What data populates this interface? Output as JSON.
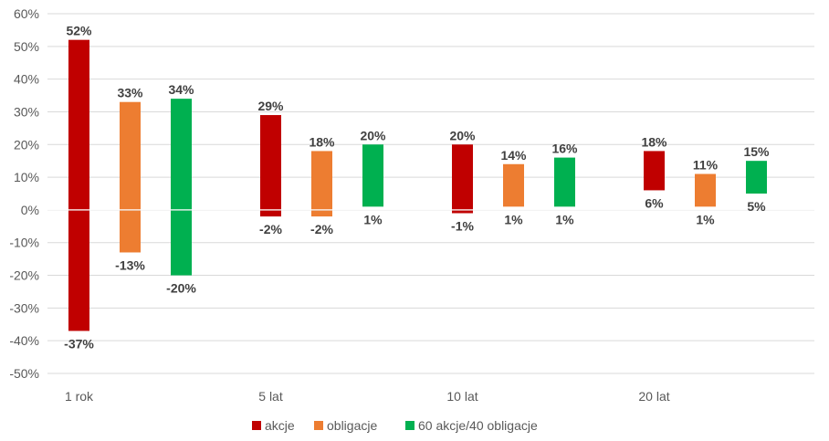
{
  "chart_data": {
    "type": "bar",
    "subtype": "floating-range",
    "categories": [
      "1 rok",
      "5 lat",
      "10 lat",
      "20 lat"
    ],
    "ylim": [
      -50,
      60
    ],
    "yticks": [
      -50,
      -40,
      -30,
      -20,
      -10,
      0,
      10,
      20,
      30,
      40,
      50,
      60
    ],
    "ytick_labels": [
      "-50%",
      "-40%",
      "-30%",
      "-20%",
      "-10%",
      "0%",
      "10%",
      "20%",
      "30%",
      "40%",
      "50%",
      "60%"
    ],
    "grid": true,
    "legend_position": "bottom",
    "series": [
      {
        "name": "akcje",
        "color": "#c00000",
        "high": [
          52,
          29,
          20,
          18
        ],
        "low": [
          -37,
          -2,
          -1,
          6
        ],
        "high_labels": [
          "52%",
          "29%",
          "20%",
          "18%"
        ],
        "low_labels": [
          "-37%",
          "-2%",
          "-1%",
          "6%"
        ]
      },
      {
        "name": "obligacje",
        "color": "#ed7d31",
        "high": [
          33,
          18,
          14,
          11
        ],
        "low": [
          -13,
          -2,
          1,
          1
        ],
        "high_labels": [
          "33%",
          "18%",
          "14%",
          "11%"
        ],
        "low_labels": [
          "-13%",
          "-2%",
          "1%",
          "1%"
        ]
      },
      {
        "name": "60 akcje/40 obligacje",
        "color": "#00b050",
        "high": [
          34,
          20,
          16,
          15
        ],
        "low": [
          -20,
          1,
          1,
          5
        ],
        "high_labels": [
          "34%",
          "20%",
          "16%",
          "15%"
        ],
        "low_labels": [
          "-20%",
          "1%",
          "1%",
          "5%"
        ]
      }
    ]
  }
}
